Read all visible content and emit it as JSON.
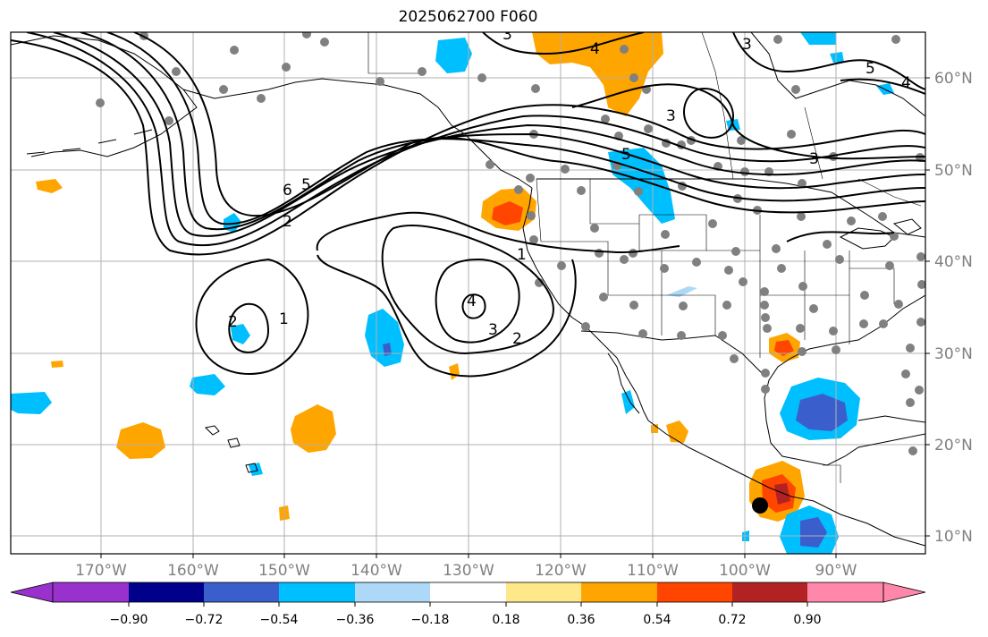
{
  "title": "2025062700 F060",
  "map": {
    "lat_labels": [
      "60°N",
      "50°N",
      "40°N",
      "30°N",
      "20°N",
      "10°N"
    ],
    "lon_labels": [
      "170°W",
      "160°W",
      "150°W",
      "140°W",
      "130°W",
      "120°W",
      "110°W",
      "100°W",
      "90°W"
    ],
    "contour_labels": [
      "6",
      "5",
      "2",
      "1",
      "4",
      "3",
      "2",
      "2",
      "1",
      "3",
      "3",
      "5",
      "4",
      "3",
      "5",
      "4",
      "3"
    ],
    "colors": {
      "grid": "#b0b0b0",
      "coast": "#000000",
      "station": "#808080",
      "storm": "#000000"
    }
  },
  "colorbar": {
    "ticks": [
      "−0.90",
      "−0.72",
      "−0.54",
      "−0.36",
      "−0.18",
      "0.18",
      "0.36",
      "0.54",
      "0.72",
      "0.90"
    ],
    "colors": [
      "#9932cc",
      "#00008b",
      "#3a5fcd",
      "#00bfff",
      "#add8f7",
      "#ffffff",
      "#ffe88a",
      "#ffa500",
      "#ff4500",
      "#b22222",
      "#ff88aa"
    ]
  }
}
